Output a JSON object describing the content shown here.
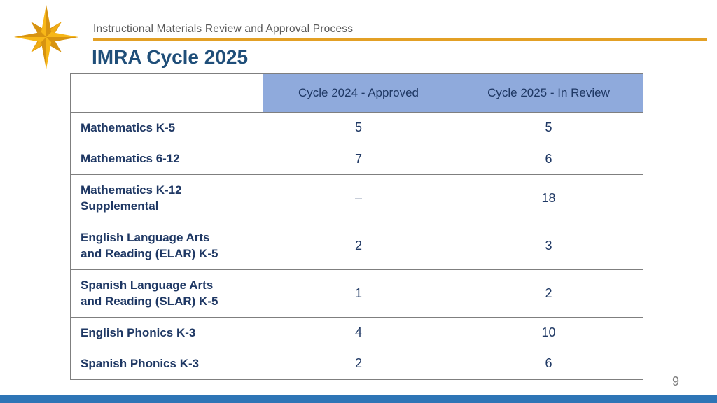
{
  "slide": {
    "eyebrow": "Instructional Materials Review and Approval Process",
    "title": "IMRA Cycle 2025",
    "page_number": "9"
  },
  "logo": {
    "icon": "compass-star"
  },
  "table": {
    "columns": [
      "",
      "Cycle 2024 - Approved",
      "Cycle 2025 - In Review"
    ],
    "rows": [
      {
        "label": "Mathematics K-5",
        "cycle_2024": "5",
        "cycle_2025": "5"
      },
      {
        "label": "Mathematics 6-12",
        "cycle_2024": "7",
        "cycle_2025": "6"
      },
      {
        "label": "Mathematics K-12\nSupplemental",
        "cycle_2024": "–",
        "cycle_2025": "18"
      },
      {
        "label": "English Language Arts\nand Reading (ELAR) K-5",
        "cycle_2024": "2",
        "cycle_2025": "3"
      },
      {
        "label": "Spanish Language Arts\nand Reading (SLAR) K-5",
        "cycle_2024": "1",
        "cycle_2025": "2"
      },
      {
        "label": "English Phonics K-3",
        "cycle_2024": "4",
        "cycle_2025": "10"
      },
      {
        "label": "Spanish Phonics K-3",
        "cycle_2024": "2",
        "cycle_2025": "6"
      }
    ]
  },
  "colors": {
    "gold": "#E3A025",
    "title_blue": "#1F4E79",
    "table_header_bg": "#8FAADC",
    "table_text": "#1F3864",
    "footer_bar_blue": "#2E75B6",
    "border_gray": "#7F7F7F"
  }
}
